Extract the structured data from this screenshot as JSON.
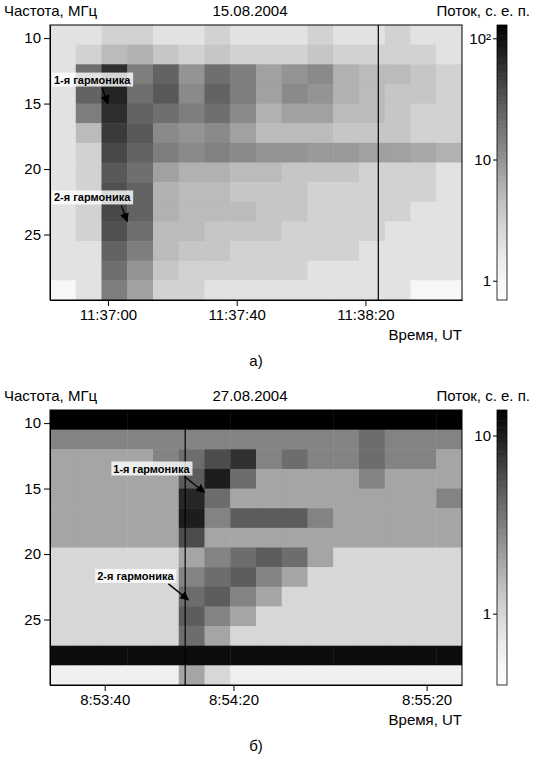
{
  "chart_data": [
    {
      "type": "heatmap",
      "title": "15.08.2004",
      "panel": "а)",
      "xlabel": "Время, UT",
      "ylabel": "Частота, МГц",
      "xlim": [
        40602,
        40730
      ],
      "xticks": [
        {
          "value": 40620,
          "label": "11:37:00"
        },
        {
          "value": 40660,
          "label": "11:37:40"
        },
        {
          "value": 40700,
          "label": "11:38:20"
        }
      ],
      "ylim": [
        9,
        30
      ],
      "yticks": [
        10,
        15,
        20,
        25
      ],
      "time_bins": [
        40602,
        40610,
        40618,
        40626,
        40634,
        40642,
        40650,
        40658,
        40666,
        40674,
        40682,
        40690,
        40698,
        40706,
        40714,
        40722,
        40730
      ],
      "freq_bins": [
        9,
        10.5,
        12,
        13.5,
        15,
        16.5,
        18,
        19.5,
        21,
        22.5,
        24,
        25.5,
        27,
        28.5,
        30
      ],
      "flux": [
        [
          2,
          2,
          3,
          3,
          2,
          2,
          3,
          2,
          2,
          2,
          3,
          2,
          2,
          3,
          2,
          2
        ],
        [
          2,
          3,
          5,
          6,
          4,
          3,
          4,
          3,
          3,
          3,
          4,
          3,
          3,
          3,
          3,
          2
        ],
        [
          2,
          20,
          60,
          15,
          25,
          10,
          20,
          15,
          8,
          10,
          12,
          6,
          5,
          5,
          4,
          3
        ],
        [
          2,
          25,
          70,
          20,
          30,
          12,
          25,
          15,
          8,
          12,
          10,
          6,
          5,
          4,
          4,
          3
        ],
        [
          2,
          15,
          60,
          25,
          20,
          15,
          20,
          12,
          6,
          8,
          8,
          5,
          5,
          4,
          3,
          3
        ],
        [
          2,
          5,
          50,
          30,
          12,
          10,
          12,
          8,
          5,
          5,
          5,
          4,
          4,
          4,
          3,
          3
        ],
        [
          2,
          3,
          40,
          25,
          15,
          12,
          14,
          12,
          10,
          10,
          9,
          9,
          8,
          8,
          7,
          6
        ],
        [
          2,
          3,
          30,
          20,
          8,
          6,
          6,
          5,
          5,
          4,
          4,
          4,
          3,
          3,
          3,
          2
        ],
        [
          2,
          3,
          35,
          25,
          6,
          5,
          5,
          4,
          4,
          4,
          3,
          3,
          3,
          3,
          3,
          2
        ],
        [
          2,
          3,
          40,
          25,
          6,
          5,
          5,
          5,
          4,
          4,
          3,
          3,
          3,
          3,
          2,
          2
        ],
        [
          2,
          3,
          35,
          20,
          5,
          5,
          4,
          4,
          4,
          3,
          3,
          3,
          3,
          2,
          2,
          2
        ],
        [
          2,
          2,
          25,
          15,
          5,
          4,
          4,
          3,
          3,
          3,
          3,
          3,
          2,
          2,
          2,
          2
        ],
        [
          2,
          2,
          20,
          10,
          4,
          3,
          3,
          3,
          3,
          3,
          2,
          2,
          2,
          2,
          2,
          2
        ],
        [
          1,
          2,
          15,
          8,
          3,
          3,
          2,
          2,
          2,
          2,
          2,
          2,
          2,
          2,
          1,
          1
        ]
      ],
      "colorbar": {
        "label": "Поток, с. е. п.",
        "log": true,
        "range": [
          0.7,
          130
        ],
        "ticks": [
          1,
          10,
          {
            "value": 100,
            "label": "10²"
          }
        ]
      },
      "vlines": [
        40704
      ],
      "annotations": [
        {
          "text": "1-я гармоника",
          "x": 40620,
          "y": 15
        },
        {
          "text": "2-я гармоника",
          "x": 40626,
          "y": 24
        }
      ]
    },
    {
      "type": "heatmap",
      "title": "27.08.2004",
      "panel": "б)",
      "xlabel": "Время, UT",
      "ylabel": "Частота, МГц",
      "xlim": [
        32003,
        32131
      ],
      "xticks": [
        {
          "value": 32020,
          "label": "8:53:40"
        },
        {
          "value": 32060,
          "label": "8:54:20"
        },
        {
          "value": 32120,
          "label": "8:55:20"
        }
      ],
      "ylim": [
        9,
        30
      ],
      "yticks": [
        10,
        15,
        20,
        25
      ],
      "time_bins": [
        32003,
        32011,
        32019,
        32027,
        32035,
        32043,
        32051,
        32059,
        32067,
        32075,
        32083,
        32091,
        32099,
        32107,
        32115,
        32123,
        32131
      ],
      "freq_bins": [
        9,
        10.5,
        12,
        13.5,
        15,
        16.5,
        18,
        19.5,
        21,
        22.5,
        24,
        25.5,
        27,
        28.5,
        30
      ],
      "flux": [
        [
          14,
          14,
          14,
          14,
          14,
          14,
          14,
          14,
          14,
          14,
          14,
          14,
          14,
          14,
          14,
          14
        ],
        [
          3,
          3,
          3,
          3,
          3,
          3,
          3,
          3,
          3,
          3,
          3,
          3,
          4,
          3,
          3,
          3
        ],
        [
          2,
          2,
          2,
          2,
          3,
          4,
          6,
          8,
          3,
          4,
          3,
          3,
          4,
          3,
          3,
          2
        ],
        [
          2,
          2,
          2,
          2,
          2,
          5,
          10,
          4,
          2,
          2,
          2,
          2,
          3,
          2,
          2,
          2
        ],
        [
          2,
          2,
          2,
          2,
          2,
          9,
          4,
          2,
          2,
          2,
          2,
          2,
          2,
          2,
          2,
          3
        ],
        [
          2,
          2,
          2,
          2,
          2,
          10,
          3,
          5,
          5,
          5,
          3,
          2,
          2,
          2,
          2,
          2
        ],
        [
          2,
          2,
          2,
          2,
          2,
          6,
          2,
          2,
          2,
          2,
          2,
          2,
          2,
          2,
          2,
          2
        ],
        [
          1,
          1,
          1,
          1,
          1,
          2,
          3,
          4,
          5,
          4,
          2,
          1,
          1,
          1,
          1,
          1
        ],
        [
          1,
          1,
          1,
          1,
          1,
          3,
          4,
          5,
          3,
          2,
          1,
          1,
          1,
          1,
          1,
          1
        ],
        [
          1,
          1,
          1,
          1,
          1,
          4,
          5,
          3,
          2,
          1,
          1,
          1,
          1,
          1,
          1,
          1
        ],
        [
          1,
          1,
          1,
          1,
          1,
          5,
          3,
          2,
          1,
          1,
          1,
          1,
          1,
          1,
          1,
          1
        ],
        [
          1,
          1,
          1,
          1,
          1,
          4,
          2,
          1,
          1,
          1,
          1,
          1,
          1,
          1,
          1,
          1
        ],
        [
          12,
          12,
          12,
          12,
          12,
          12,
          12,
          12,
          12,
          12,
          12,
          12,
          12,
          12,
          12,
          12
        ],
        [
          0.6,
          0.6,
          0.6,
          0.6,
          0.6,
          2,
          1,
          0.6,
          0.6,
          0.6,
          0.6,
          0.6,
          0.6,
          0.6,
          0.6,
          0.6
        ]
      ],
      "colorbar": {
        "label": "Поток, с. е. п.",
        "log": true,
        "range": [
          0.4,
          14
        ],
        "ticks": [
          1,
          10
        ]
      },
      "vlines": [
        32045
      ],
      "annotations": [
        {
          "text": "1-я гармоника",
          "x": 32051,
          "y": 15.3
        },
        {
          "text": "2-я гармоника",
          "x": 32046,
          "y": 23.5
        }
      ]
    }
  ]
}
